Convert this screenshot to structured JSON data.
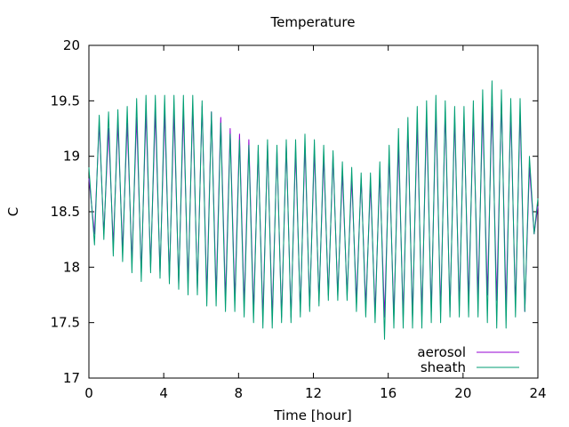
{
  "chart_data": {
    "type": "line",
    "title": "Temperature",
    "xlabel": "Time [hour]",
    "ylabel": "C",
    "xlim": [
      0,
      24
    ],
    "ylim": [
      17,
      20
    ],
    "x_ticks": [
      0,
      4,
      8,
      12,
      16,
      20,
      24
    ],
    "y_ticks": [
      17,
      17.5,
      18,
      18.5,
      19,
      19.5,
      20
    ],
    "x_tick_labels": [
      "0",
      "4",
      "8",
      "12",
      "16",
      "20",
      "24"
    ],
    "y_tick_labels": [
      "17",
      "17.5",
      "18",
      "18.5",
      "19",
      "19.5",
      "20"
    ],
    "grid": false,
    "legend_position": "bottom-right",
    "x": [
      0.0,
      0.3,
      0.55,
      0.8,
      1.05,
      1.3,
      1.55,
      1.8,
      2.05,
      2.3,
      2.55,
      2.8,
      3.05,
      3.3,
      3.55,
      3.8,
      4.05,
      4.3,
      4.55,
      4.8,
      5.05,
      5.3,
      5.55,
      5.8,
      6.05,
      6.3,
      6.55,
      6.8,
      7.05,
      7.3,
      7.55,
      7.8,
      8.05,
      8.3,
      8.55,
      8.8,
      9.05,
      9.3,
      9.55,
      9.8,
      10.05,
      10.3,
      10.55,
      10.8,
      11.05,
      11.3,
      11.55,
      11.8,
      12.05,
      12.3,
      12.55,
      12.8,
      13.05,
      13.3,
      13.55,
      13.8,
      14.05,
      14.3,
      14.55,
      14.8,
      15.05,
      15.3,
      15.55,
      15.8,
      16.05,
      16.3,
      16.55,
      16.8,
      17.05,
      17.3,
      17.55,
      17.8,
      18.05,
      18.3,
      18.55,
      18.8,
      19.05,
      19.3,
      19.55,
      19.8,
      20.05,
      20.3,
      20.55,
      20.8,
      21.05,
      21.3,
      21.55,
      21.8,
      22.05,
      22.3,
      22.55,
      22.8,
      23.05,
      23.3,
      23.55,
      23.8,
      24.0
    ],
    "series": [
      {
        "name": "aerosol",
        "color": "#9400d3",
        "values": [
          18.8,
          18.3,
          19.3,
          18.3,
          19.25,
          18.2,
          19.3,
          18.15,
          19.3,
          18.05,
          19.35,
          17.95,
          19.4,
          18.0,
          19.4,
          17.95,
          19.4,
          17.9,
          19.4,
          17.85,
          19.4,
          17.85,
          19.45,
          17.8,
          19.45,
          17.75,
          19.4,
          17.75,
          19.35,
          17.7,
          19.25,
          17.7,
          19.2,
          17.65,
          19.15,
          17.6,
          19.05,
          17.55,
          19.1,
          17.55,
          19.05,
          17.55,
          19.1,
          17.55,
          19.05,
          17.6,
          19.1,
          17.65,
          19.05,
          17.7,
          19.0,
          17.75,
          19.0,
          17.75,
          18.85,
          17.75,
          18.8,
          17.7,
          18.8,
          17.65,
          18.75,
          17.6,
          18.85,
          17.55,
          19.0,
          17.55,
          19.1,
          17.55,
          19.25,
          17.55,
          19.3,
          17.55,
          19.35,
          17.6,
          19.4,
          17.6,
          19.4,
          17.6,
          19.35,
          17.65,
          19.35,
          17.7,
          19.35,
          17.75,
          19.4,
          17.75,
          19.45,
          17.7,
          19.5,
          17.65,
          19.4,
          17.65,
          19.4,
          17.6,
          18.9,
          18.3,
          18.55
        ]
      },
      {
        "name": "sheath",
        "color": "#009e73",
        "values": [
          18.9,
          18.2,
          19.37,
          18.25,
          19.4,
          18.1,
          19.42,
          18.05,
          19.45,
          17.95,
          19.52,
          17.87,
          19.55,
          17.95,
          19.55,
          17.9,
          19.55,
          17.85,
          19.55,
          17.8,
          19.55,
          17.75,
          19.55,
          17.75,
          19.5,
          17.65,
          19.4,
          17.65,
          19.3,
          17.6,
          19.2,
          17.6,
          19.15,
          17.55,
          19.1,
          17.5,
          19.1,
          17.45,
          19.15,
          17.45,
          19.1,
          17.5,
          19.15,
          17.5,
          19.15,
          17.55,
          19.2,
          17.6,
          19.15,
          17.65,
          19.1,
          17.7,
          19.05,
          17.7,
          18.95,
          17.7,
          18.9,
          17.6,
          18.85,
          17.55,
          18.85,
          17.5,
          18.95,
          17.35,
          19.1,
          17.45,
          19.25,
          17.45,
          19.35,
          17.45,
          19.45,
          17.45,
          19.5,
          17.5,
          19.55,
          17.5,
          19.5,
          17.55,
          19.45,
          17.55,
          19.45,
          17.55,
          19.5,
          17.55,
          19.6,
          17.5,
          19.68,
          17.45,
          19.6,
          17.45,
          19.52,
          17.55,
          19.52,
          17.6,
          19.0,
          18.3,
          18.62
        ]
      }
    ]
  }
}
